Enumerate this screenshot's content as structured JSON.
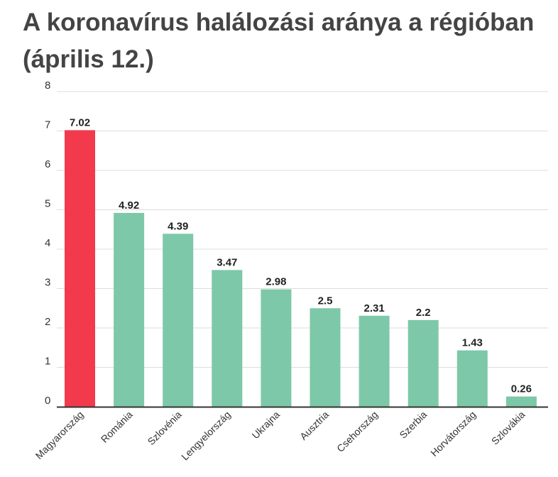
{
  "chart_data": {
    "type": "bar",
    "title": "A koronavírus halálozási aránya a régióban (április 12.)",
    "categories": [
      "Magyarország",
      "Románia",
      "Szlovénia",
      "Lengyelország",
      "Ukrajna",
      "Ausztria",
      "Csehország",
      "Szerbia",
      "Horvátország",
      "Szlovákia"
    ],
    "values": [
      7.02,
      4.92,
      4.39,
      3.47,
      2.98,
      2.5,
      2.31,
      2.2,
      1.43,
      0.26
    ],
    "value_labels": [
      "7.02",
      "4.92",
      "4.39",
      "3.47",
      "2.98",
      "2.5",
      "2.31",
      "2.2",
      "1.43",
      "0.26"
    ],
    "xlabel": "",
    "ylabel": "",
    "ylim": [
      0,
      8
    ],
    "yticks": [
      0,
      1,
      2,
      3,
      4,
      5,
      6,
      7,
      8
    ],
    "grid": true,
    "colors": {
      "highlight": "#f23a4c",
      "default": "#7dc8a9",
      "grid": "#dddddd",
      "axis": "#333333"
    },
    "highlight_index": 0
  }
}
